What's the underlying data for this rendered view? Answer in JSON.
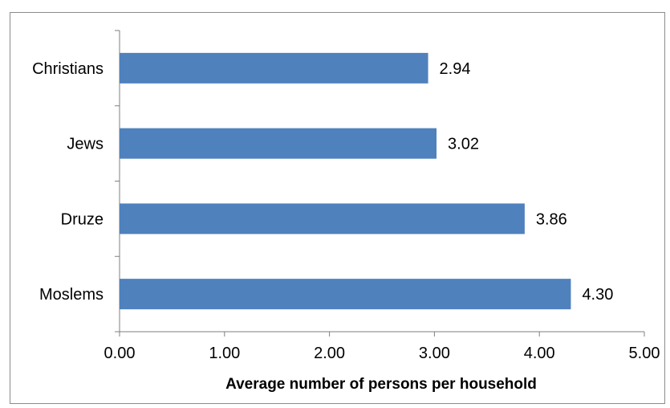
{
  "chart_data": {
    "type": "bar",
    "orientation": "horizontal",
    "categories": [
      "Christians",
      "Jews",
      "Druze",
      "Moslems"
    ],
    "values": [
      2.94,
      3.02,
      3.86,
      4.3
    ],
    "data_labels": [
      "2.94",
      "3.02",
      "3.86",
      "4.30"
    ],
    "xlabel": "Average number of persons per household",
    "xlim": [
      0,
      5
    ],
    "x_ticks": [
      "0.00",
      "1.00",
      "2.00",
      "3.00",
      "4.00",
      "5.00"
    ],
    "bar_color": "#4f81bd",
    "grid": false,
    "legend": "none"
  }
}
